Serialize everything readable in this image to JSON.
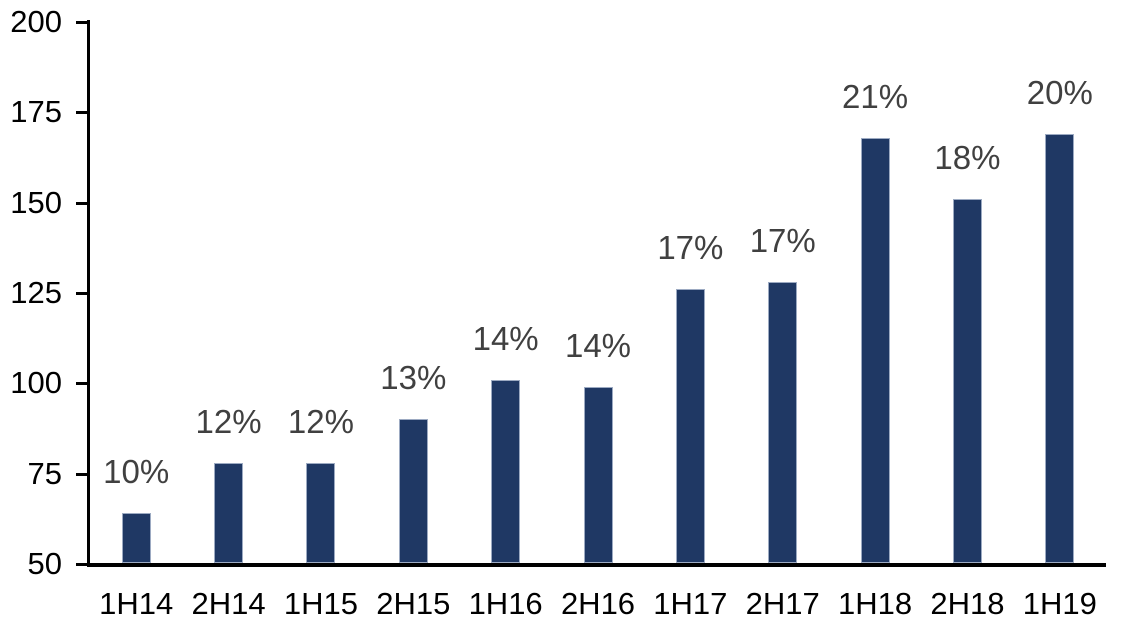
{
  "chart_data": {
    "type": "bar",
    "categories": [
      "1H14",
      "2H14",
      "1H15",
      "2H15",
      "1H16",
      "2H16",
      "1H17",
      "2H17",
      "1H18",
      "2H18",
      "1H19"
    ],
    "values": [
      64,
      78,
      78,
      90,
      101,
      99,
      126,
      128,
      168,
      151,
      169
    ],
    "data_labels": [
      "10%",
      "12%",
      "12%",
      "13%",
      "14%",
      "14%",
      "17%",
      "17%",
      "21%",
      "18%",
      "20%"
    ],
    "title": "",
    "xlabel": "",
    "ylabel": "",
    "ylim": [
      50,
      200
    ],
    "y_ticks": [
      50,
      75,
      100,
      125,
      150,
      175,
      200
    ],
    "grid": false,
    "legend": "none",
    "colors": {
      "bar_fill": "#1F3864",
      "bar_border": "#9CAAC2",
      "data_label": "#404040",
      "tick_label": "#000000",
      "axis_line": "#000000",
      "background": "#FFFFFF"
    }
  }
}
